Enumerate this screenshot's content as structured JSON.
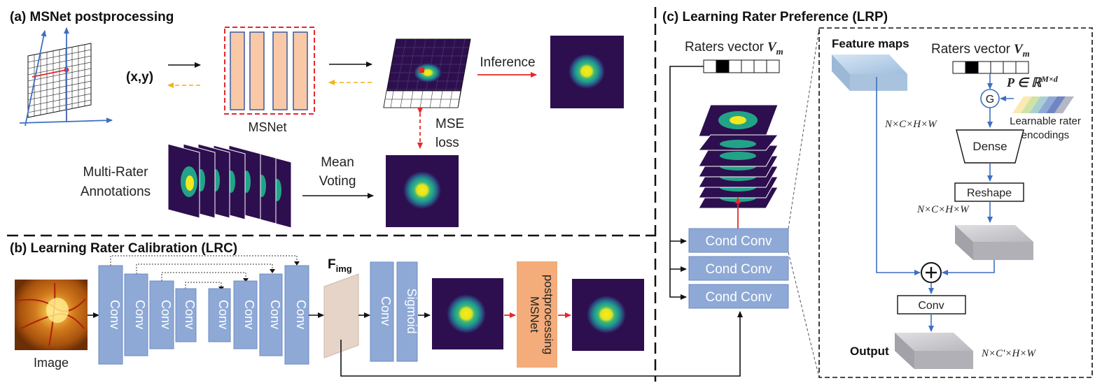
{
  "panel_a": {
    "title": "(a) MSNet postprocessing",
    "coord_label": "(x,y)",
    "msnet_label": "MSNet",
    "mse_line1": "MSE",
    "mse_line2": "loss",
    "inference_label": "Inference",
    "multi_rater_line1": "Multi-Rater",
    "multi_rater_line2": "Annotations",
    "mean_line1": "Mean",
    "mean_line2": "Voting"
  },
  "panel_b": {
    "title": "(b) Learning Rater Calibration (LRC)",
    "image_label": "Image",
    "conv_label": "Conv",
    "fimg_main": "F",
    "fimg_sub": "img",
    "sigmoid_label": "Sigmoid",
    "msnet_post_line1": "MSNet",
    "msnet_post_line2": "postprocessing"
  },
  "panel_c": {
    "title": "(c) Learning Rater Preference (LRP)",
    "raters_vector_label": "Raters vector",
    "vm_label": "V",
    "vm_sub": "m",
    "cond_conv_label": "Cond Conv",
    "feature_maps_label": "Feature maps",
    "nchw_label": "N×C×H×W",
    "nc2hw_label": "N×C′×H×W",
    "p_label": "P ∈ ℝ",
    "p_sup": "M×d",
    "g_label": "G",
    "learnable_line1": "Learnable rater",
    "learnable_line2": "encodings",
    "dense_label": "Dense",
    "reshape_label": "Reshape",
    "conv_label": "Conv",
    "output_label": "Output"
  },
  "colors": {
    "conv_blue": "#8ea9d6",
    "conv_blue_edge": "#6f8cc4",
    "msnet_orange": "#f4ac7a",
    "arrow_red": "#e8262a",
    "arrow_yellow": "#f2b21c",
    "arrow_blue": "#3e6fc0",
    "seg_dark": "#2d0f4f",
    "seg_teal": "#22a388",
    "seg_yellow": "#f2e81f"
  }
}
